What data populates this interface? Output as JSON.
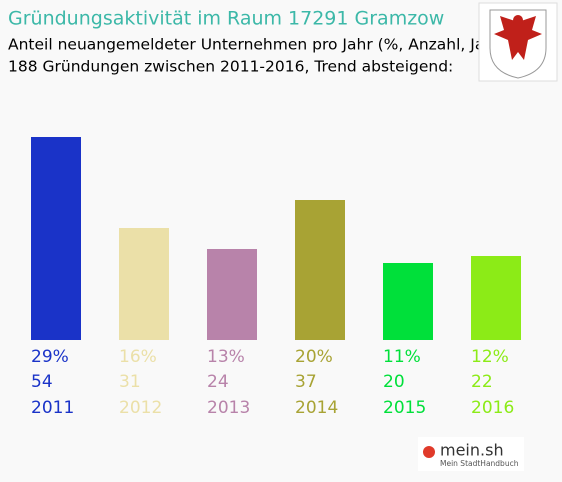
{
  "chart_data": {
    "type": "bar",
    "title": "Gründungsaktivität im Raum 17291 Gramzow",
    "subtitle": [
      "Anteil neuangemeldeter Unternehmen pro Jahr (%, Anzahl, Jahr)",
      "188 Gründungen zwischen 2011-2016, Trend absteigend:"
    ],
    "categories": [
      "2011",
      "2012",
      "2013",
      "2014",
      "2015",
      "2016"
    ],
    "values": [
      29,
      16,
      13,
      20,
      11,
      12
    ],
    "value_labels": [
      "29%",
      "16%",
      "13%",
      "20%",
      "11%",
      "12%"
    ],
    "counts": [
      54,
      31,
      24,
      37,
      20,
      22
    ],
    "colors": [
      "#1a33c8",
      "#ebe0a8",
      "#b883aa",
      "#a8a334",
      "#00e03a",
      "#8ceb17"
    ]
  },
  "logo": {
    "name": "mein.sh",
    "tagline": "Mein StadtHandbuch"
  }
}
